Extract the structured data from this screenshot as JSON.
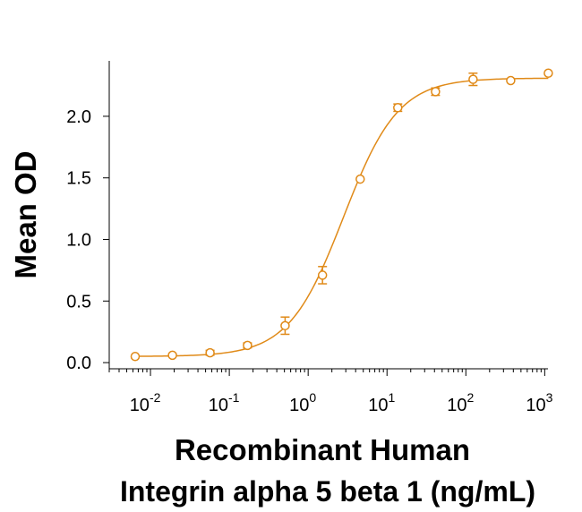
{
  "chart_data": {
    "type": "scatter",
    "title": "",
    "xlabel_lines": [
      "Recombinant Human",
      "Integrin alpha 5 beta 1 (ng/mL)"
    ],
    "ylabel": "Mean OD",
    "x_scale": "log",
    "xlim": [
      0.003,
      1100
    ],
    "ylim": [
      -0.05,
      2.45
    ],
    "grid": false,
    "legend": "none",
    "color": "#e08a18",
    "x_ticks": [
      {
        "base": "10",
        "exp": "-2",
        "value": 0.01
      },
      {
        "base": "10",
        "exp": "-1",
        "value": 0.1
      },
      {
        "base": "10",
        "exp": "0",
        "value": 1
      },
      {
        "base": "10",
        "exp": "1",
        "value": 10
      },
      {
        "base": "10",
        "exp": "2",
        "value": 100
      },
      {
        "base": "10",
        "exp": "3",
        "value": 1000
      }
    ],
    "y_ticks": [
      {
        "label": "0.0",
        "value": 0.0
      },
      {
        "label": "0.5",
        "value": 0.5
      },
      {
        "label": "1.0",
        "value": 1.0
      },
      {
        "label": "1.5",
        "value": 1.5
      },
      {
        "label": "2.0",
        "value": 2.0
      }
    ],
    "series": [
      {
        "points": [
          {
            "x": 0.0064,
            "y": 0.05,
            "err": 0.01
          },
          {
            "x": 0.019,
            "y": 0.06,
            "err": 0.01
          },
          {
            "x": 0.057,
            "y": 0.08,
            "err": 0.02
          },
          {
            "x": 0.17,
            "y": 0.14,
            "err": 0.02
          },
          {
            "x": 0.51,
            "y": 0.3,
            "err": 0.07
          },
          {
            "x": 1.52,
            "y": 0.71,
            "err": 0.07
          },
          {
            "x": 4.57,
            "y": 1.49,
            "err": 0.01
          },
          {
            "x": 13.7,
            "y": 2.07,
            "err": 0.03
          },
          {
            "x": 41.2,
            "y": 2.2,
            "err": 0.03
          },
          {
            "x": 123.5,
            "y": 2.3,
            "err": 0.05
          },
          {
            "x": 370.4,
            "y": 2.29,
            "err": 0.01
          },
          {
            "x": 1111,
            "y": 2.35,
            "err": 0.01
          }
        ],
        "fit": {
          "bottom": 0.05,
          "top": 2.31,
          "ec50": 2.8,
          "hill": 1.25
        }
      }
    ]
  }
}
